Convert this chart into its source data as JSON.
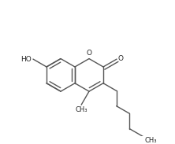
{
  "bg_color": "#ffffff",
  "line_color": "#555555",
  "text_color": "#222222",
  "line_width": 1.0,
  "font_size": 6.5,
  "fig_width": 2.22,
  "fig_height": 1.83,
  "dpi": 100,
  "xlim": [
    0,
    222
  ],
  "ylim": [
    0,
    183
  ],
  "bl": 22,
  "bcx": 75,
  "bcy": 82
}
